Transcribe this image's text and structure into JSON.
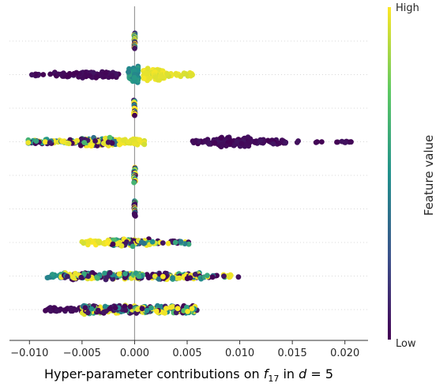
{
  "chart_data": {
    "type": "scatter",
    "subtype": "beeswarm",
    "title": "",
    "xlabel_parts": {
      "prefix": "Hyper-parameter contributions on ",
      "var": "f",
      "sub": "17",
      "mid": " in ",
      "var2": "d",
      "suffix": " = 5"
    },
    "ylabel": "",
    "xlim": [
      -0.0119,
      0.0222
    ],
    "xticks": [
      -0.01,
      -0.005,
      0.0,
      0.005,
      0.01,
      0.015,
      0.02
    ],
    "xtick_labels": [
      "−0.010",
      "−0.005",
      "0.000",
      "0.005",
      "0.010",
      "0.015",
      "0.020"
    ],
    "row_count": 9,
    "y_tick_labels": [],
    "grid": "dotted horizontal row lines",
    "colorbar": {
      "label": "Feature value",
      "high_label": "High",
      "low_label": "Low",
      "colormap": "viridis"
    },
    "rows": [
      {
        "clusters": [
          {
            "xmin": -8e-05,
            "xmax": 8e-05,
            "n": 30,
            "value": "mixed"
          }
        ]
      },
      {
        "clusters": [
          {
            "xmin": -0.0051,
            "xmax": -0.0015,
            "n": 60,
            "value": "low"
          },
          {
            "xmin": -0.0078,
            "xmax": -0.0051,
            "n": 28,
            "value": "low"
          },
          {
            "xmin": -0.0102,
            "xmax": -0.0078,
            "n": 8,
            "value": "low"
          },
          {
            "xmin": -0.0006,
            "xmax": 0.0004,
            "n": 55,
            "value": "mid"
          },
          {
            "xmin": 0.0008,
            "xmax": 0.0028,
            "n": 70,
            "value": "high"
          },
          {
            "xmin": 0.0028,
            "xmax": 0.0056,
            "n": 25,
            "value": "high"
          }
        ]
      },
      {
        "clusters": [
          {
            "xmin": -8e-05,
            "xmax": 8e-05,
            "n": 22,
            "value": "mixed"
          }
        ]
      },
      {
        "clusters": [
          {
            "xmin": -0.0052,
            "xmax": -0.0015,
            "n": 90,
            "value": "mixed"
          },
          {
            "xmin": -0.0102,
            "xmax": -0.0052,
            "n": 55,
            "value": "mixed"
          },
          {
            "xmin": -0.0015,
            "xmax": 0.0008,
            "n": 35,
            "value": "high"
          },
          {
            "xmin": 0.0007,
            "xmax": 0.001,
            "n": 4,
            "value": "high"
          },
          {
            "xmin": 0.0078,
            "xmax": 0.011,
            "n": 90,
            "value": "low"
          },
          {
            "xmin": 0.0054,
            "xmax": 0.0078,
            "n": 25,
            "value": "low"
          },
          {
            "xmin": 0.011,
            "xmax": 0.0145,
            "n": 35,
            "value": "low"
          },
          {
            "xmin": 0.0145,
            "xmax": 0.0208,
            "n": 14,
            "value": "low"
          }
        ]
      },
      {
        "clusters": [
          {
            "xmin": -8e-05,
            "xmax": 8e-05,
            "n": 22,
            "value": "mixed"
          }
        ]
      },
      {
        "clusters": [
          {
            "xmin": -8e-05,
            "xmax": 8e-05,
            "n": 20,
            "value": "mixed"
          }
        ]
      },
      {
        "clusters": [
          {
            "xmin": -0.0025,
            "xmax": 0.0016,
            "n": 85,
            "value": "mixed"
          },
          {
            "xmin": -0.005,
            "xmax": -0.0025,
            "n": 25,
            "value": "high"
          },
          {
            "xmin": 0.0016,
            "xmax": 0.0055,
            "n": 25,
            "value": "mixed"
          }
        ]
      },
      {
        "clusters": [
          {
            "xmin": -0.0085,
            "xmax": -0.007,
            "n": 12,
            "value": "mid"
          },
          {
            "xmin": -0.007,
            "xmax": 0.0,
            "n": 130,
            "value": "mixed"
          },
          {
            "xmin": 0.0,
            "xmax": 0.0065,
            "n": 110,
            "value": "mixed"
          },
          {
            "xmin": 0.0065,
            "xmax": 0.01,
            "n": 18,
            "value": "mixed"
          }
        ]
      },
      {
        "clusters": [
          {
            "xmin": -0.0085,
            "xmax": -0.005,
            "n": 35,
            "value": "low"
          },
          {
            "xmin": -0.005,
            "xmax": 0.0,
            "n": 120,
            "value": "mixed"
          },
          {
            "xmin": 0.0,
            "xmax": 0.006,
            "n": 120,
            "value": "mixed"
          }
        ]
      }
    ]
  }
}
